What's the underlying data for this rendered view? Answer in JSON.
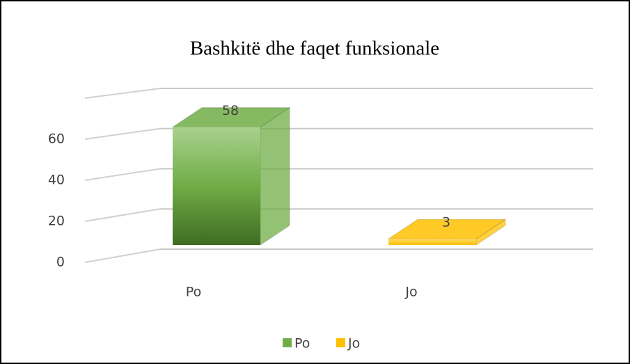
{
  "chart_data": {
    "type": "bar3d",
    "title": "Bashkitë dhe faqet funksionale",
    "categories": [
      "Po",
      "Jo"
    ],
    "values": [
      58,
      3
    ],
    "colors": [
      "#70ad47",
      "#ffc000"
    ],
    "ylim": [
      0,
      80
    ],
    "yticks": [
      0,
      20,
      40,
      60
    ],
    "grid": true,
    "legend": "bottom"
  }
}
